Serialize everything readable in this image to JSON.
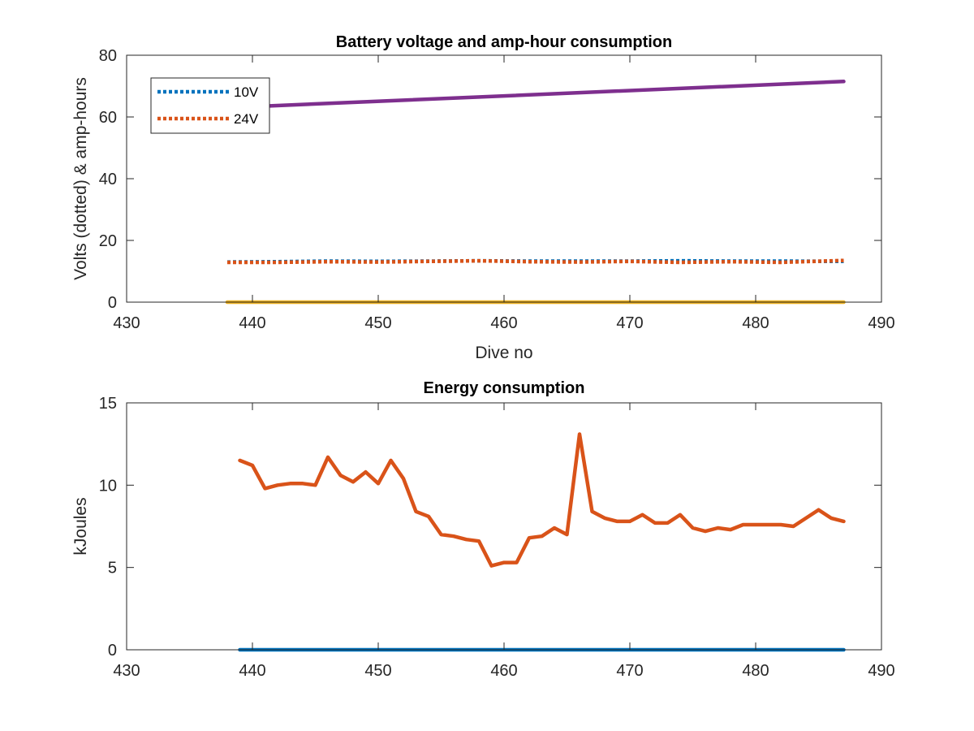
{
  "chart_data": [
    {
      "type": "line",
      "title": "Battery voltage and amp-hour consumption",
      "xlabel": "Dive no",
      "ylabel": "Volts (dotted) & amp-hours",
      "xlim": [
        430,
        490
      ],
      "ylim": [
        0,
        80
      ],
      "xticks": [
        430,
        440,
        450,
        460,
        470,
        480,
        490
      ],
      "yticks": [
        0,
        20,
        40,
        60,
        80
      ],
      "grid": false,
      "legend_position": "top-left",
      "series": [
        {
          "name": "10V",
          "style": "dotted",
          "color": "#0072BD",
          "x": [
            438,
            442,
            446,
            450,
            454,
            458,
            462,
            466,
            470,
            474,
            478,
            482,
            487
          ],
          "y": [
            13.0,
            13.1,
            13.3,
            13.2,
            13.3,
            13.4,
            13.3,
            13.3,
            13.3,
            13.4,
            13.3,
            13.3,
            13.2
          ]
        },
        {
          "name": "24V",
          "style": "dotted",
          "color": "#D95319",
          "x": [
            438,
            442,
            446,
            450,
            454,
            458,
            462,
            466,
            470,
            474,
            478,
            482,
            487
          ],
          "y": [
            12.9,
            12.9,
            13.1,
            13.0,
            13.2,
            13.4,
            13.1,
            13.0,
            13.2,
            12.9,
            13.1,
            12.9,
            13.5
          ]
        },
        {
          "style": "solid",
          "color": "#7E2F8E",
          "x": [
            438,
            487
          ],
          "y": [
            63.0,
            71.5
          ]
        },
        {
          "style": "solid",
          "color": "#EDB120",
          "x": [
            438,
            487
          ],
          "y": [
            0,
            0
          ]
        }
      ]
    },
    {
      "type": "line",
      "title": "Energy consumption",
      "xlabel": "",
      "ylabel": "kJoules",
      "xlim": [
        430,
        490
      ],
      "ylim": [
        0,
        15
      ],
      "xticks": [
        430,
        440,
        450,
        460,
        470,
        480,
        490
      ],
      "yticks": [
        0,
        5,
        10,
        15
      ],
      "grid": false,
      "series": [
        {
          "style": "solid",
          "color": "#0072BD",
          "x": [
            439,
            487
          ],
          "y": [
            0,
            0
          ]
        },
        {
          "style": "solid",
          "color": "#D95319",
          "x": [
            439,
            440,
            441,
            442,
            443,
            444,
            445,
            446,
            447,
            448,
            449,
            450,
            451,
            452,
            453,
            454,
            455,
            456,
            457,
            458,
            459,
            460,
            461,
            462,
            463,
            464,
            465,
            466,
            467,
            468,
            469,
            470,
            471,
            472,
            473,
            474,
            475,
            476,
            477,
            478,
            479,
            480,
            481,
            482,
            483,
            484,
            485,
            486,
            487
          ],
          "y": [
            11.5,
            11.2,
            9.8,
            10.0,
            10.1,
            10.1,
            10.0,
            11.7,
            10.6,
            10.2,
            10.8,
            10.1,
            11.5,
            10.4,
            8.4,
            8.1,
            7.0,
            6.9,
            6.7,
            6.6,
            5.1,
            5.3,
            5.3,
            6.8,
            6.9,
            7.4,
            7.0,
            13.1,
            8.4,
            8.0,
            7.8,
            7.8,
            8.2,
            7.7,
            7.7,
            8.2,
            7.4,
            7.2,
            7.4,
            7.3,
            7.6,
            7.6,
            7.6,
            7.6,
            7.5,
            8.0,
            8.5,
            8.0,
            7.8
          ]
        }
      ]
    }
  ]
}
